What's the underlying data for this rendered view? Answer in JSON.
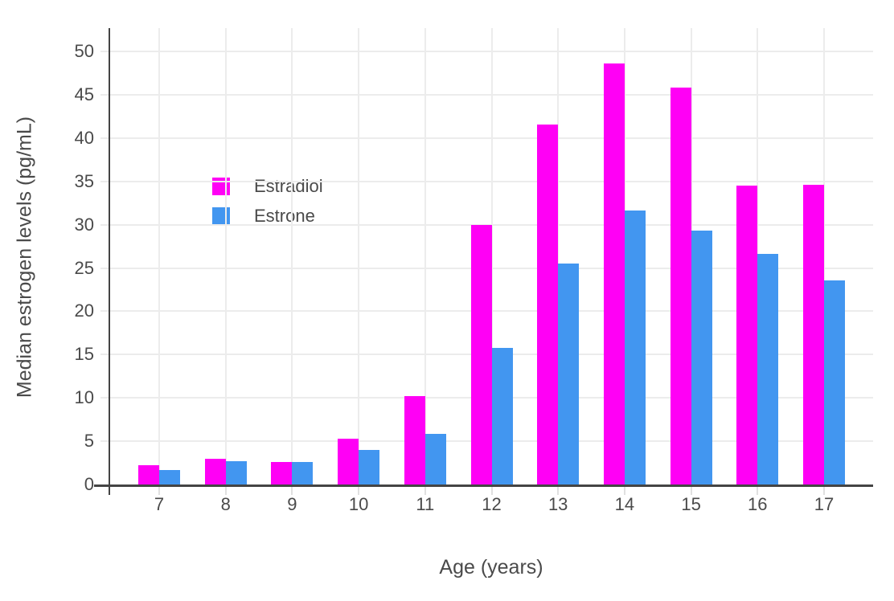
{
  "chart_data": {
    "type": "bar",
    "title": "",
    "xlabel": "Age (years)",
    "ylabel": "Median estrogen levels (pg/mL)",
    "categories": [
      "7",
      "8",
      "9",
      "10",
      "11",
      "12",
      "13",
      "14",
      "15",
      "16",
      "17"
    ],
    "yticks": [
      0,
      5,
      10,
      15,
      20,
      25,
      30,
      35,
      40,
      45,
      50
    ],
    "ylim": [
      0,
      52.7
    ],
    "grid": true,
    "legend_position": "inside top-left",
    "series": [
      {
        "name": "Estradiol",
        "color": "#FF00F5",
        "values": [
          2.2,
          3.0,
          2.6,
          5.3,
          10.2,
          30.0,
          41.6,
          48.6,
          45.8,
          34.5,
          34.6
        ]
      },
      {
        "name": "Estrone",
        "color": "#4296F0",
        "values": [
          1.7,
          2.7,
          2.6,
          4.0,
          5.8,
          15.8,
          25.5,
          31.6,
          29.3,
          26.6,
          23.6
        ]
      }
    ]
  },
  "colors": {
    "background": "#FFFFFF",
    "axis_line": "#444444",
    "grid_line": "#ECECEC",
    "tick_mark": "#E0E0E0",
    "text": "#4A4A4A",
    "estradiol": "#FF00F5",
    "estrone": "#4296F0"
  }
}
